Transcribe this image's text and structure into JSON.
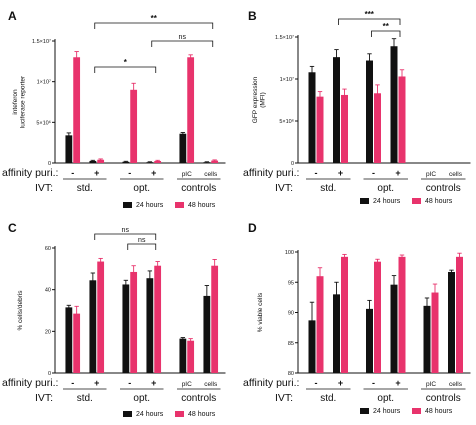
{
  "colors": {
    "h24": "#111111",
    "h48": "#e8336c"
  },
  "row_labels": {
    "affinity": "affinity puri.:",
    "ivt": "IVT:"
  },
  "signs": {
    "minus": "-",
    "plus": "+"
  },
  "groups": {
    "std": "std.",
    "opt": "opt.",
    "controls": "controls"
  },
  "control_labels": [
    "pIC",
    "cells"
  ],
  "legend": {
    "h24": "24 hours",
    "h48": "48 hours"
  },
  "chart_data": [
    {
      "panel": "A",
      "type": "bar",
      "ylabel": "inteferon\nluciferase reporter",
      "ylim": [
        0,
        15000000
      ],
      "yticks": [
        0,
        5000000,
        10000000,
        15000000
      ],
      "ytick_labels": [
        "0",
        "5×10⁶",
        "1×10⁷",
        "1.5×10⁷"
      ],
      "categories": [
        "std. -",
        "std. +",
        "opt. -",
        "opt. +",
        "pIC",
        "cells"
      ],
      "series": [
        {
          "name": "24 hours",
          "values": [
            3400000,
            250000,
            150000,
            100000,
            3600000,
            100000
          ],
          "errors": [
            300000,
            80000,
            60000,
            50000,
            150000,
            50000
          ]
        },
        {
          "name": "48 hours",
          "values": [
            13000000,
            400000,
            9000000,
            250000,
            13000000,
            300000
          ],
          "errors": [
            700000,
            100000,
            800000,
            80000,
            300000,
            80000
          ]
        }
      ],
      "annotations": [
        {
          "text": "**",
          "from": 1,
          "to": 5
        },
        {
          "text": "ns",
          "from": 3,
          "to": 5
        },
        {
          "text": "*",
          "from": 1,
          "to": 3
        }
      ]
    },
    {
      "panel": "B",
      "type": "bar",
      "ylabel": "GFP expression\n(MFI)",
      "ylim": [
        0,
        15000000
      ],
      "yticks": [
        0,
        5000000,
        10000000,
        15000000
      ],
      "ytick_labels": [
        "0",
        "5×10⁶",
        "1×10⁷",
        "1.5×10⁷"
      ],
      "categories": [
        "std. -",
        "std. +",
        "opt. -",
        "opt. +",
        "pIC",
        "cells"
      ],
      "series": [
        {
          "name": "24 hours",
          "values": [
            10800000,
            12600000,
            12200000,
            13900000,
            null,
            null
          ],
          "errors": [
            700000,
            900000,
            800000,
            900000,
            null,
            null
          ]
        },
        {
          "name": "48 hours",
          "values": [
            7900000,
            8100000,
            8300000,
            10300000,
            null,
            null
          ],
          "errors": [
            600000,
            700000,
            1000000,
            800000,
            null,
            null
          ]
        }
      ],
      "annotations": [
        {
          "text": "***",
          "from": 1,
          "to": 3
        },
        {
          "text": "**",
          "from": 2,
          "to": 3
        }
      ]
    },
    {
      "panel": "C",
      "type": "bar",
      "ylabel": "% cells/debris",
      "ylim": [
        0,
        60
      ],
      "yticks": [
        0,
        20,
        40,
        60
      ],
      "ytick_labels": [
        "0",
        "20",
        "40",
        "60"
      ],
      "categories": [
        "std. -",
        "std. +",
        "opt. -",
        "opt. +",
        "pIC",
        "cells"
      ],
      "series": [
        {
          "name": "24 hours",
          "values": [
            31.5,
            44.5,
            42.5,
            45.5,
            16.5,
            37
          ],
          "errors": [
            1,
            3.5,
            2,
            3.5,
            0.5,
            5
          ]
        },
        {
          "name": "48 hours",
          "values": [
            28.5,
            53.5,
            48.5,
            51.5,
            15.5,
            51.5
          ],
          "errors": [
            3.5,
            1.5,
            3,
            2,
            1,
            3
          ]
        }
      ],
      "annotations": [
        {
          "text": "ns",
          "from": 1,
          "to": 3
        },
        {
          "text": "ns",
          "from": 2,
          "to": 3
        }
      ]
    },
    {
      "panel": "D",
      "type": "bar",
      "ylabel": "% viable cells",
      "ylim": [
        80,
        100
      ],
      "yticks": [
        80,
        85,
        90,
        95,
        100
      ],
      "ytick_labels": [
        "80",
        "85",
        "90",
        "95",
        "100"
      ],
      "categories": [
        "std. -",
        "std. +",
        "opt. -",
        "opt. +",
        "pIC",
        "cells"
      ],
      "series": [
        {
          "name": "24 hours",
          "values": [
            88.7,
            93,
            90.6,
            94.6,
            91.1,
            96.7
          ],
          "errors": [
            3,
            2,
            1.4,
            1.5,
            1.3,
            0.3
          ]
        },
        {
          "name": "48 hours",
          "values": [
            96,
            99.2,
            98.4,
            99.2,
            93.3,
            99.2
          ],
          "errors": [
            1.4,
            0.4,
            0.4,
            0.3,
            1.4,
            0.6
          ]
        }
      ],
      "annotations": []
    }
  ]
}
